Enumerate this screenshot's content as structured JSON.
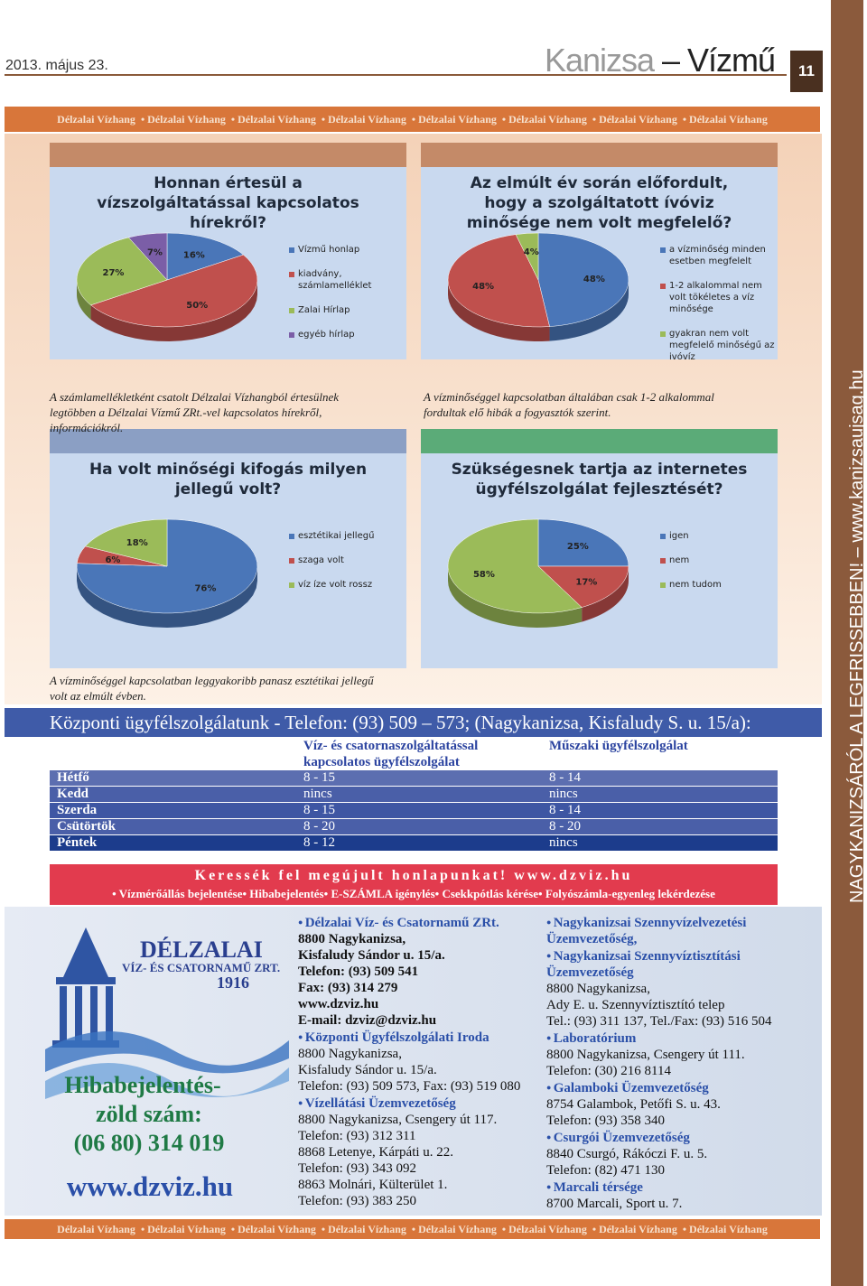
{
  "header": {
    "date": "2013. május 23.",
    "brand": "Kanizsa",
    "brand_rest": "– Vízmű",
    "page": "11"
  },
  "banner": "Délzalai Vízhang",
  "side_text": "NAGYKANIZSÁRÓL A LEGFRISSEBBEN! – www.kanizsaujsag.hu",
  "chart_data": [
    {
      "type": "pie",
      "title": "Honnan értesül a vízszolgáltatással kapcsolatos hírekről?",
      "categories": [
        "Vízmű honlap",
        "kiadvány, számlamelléklet",
        "Zalai Hírlap",
        "egyéb hírlap"
      ],
      "values": [
        16,
        50,
        27,
        7
      ],
      "value_labels": [
        "16%",
        "50%",
        "27%",
        "7%"
      ],
      "colors": [
        "#4a76b8",
        "#c0504d",
        "#9bbb59",
        "#7b5ea7"
      ],
      "caption": "A számlamellékletként csatolt Délzalai Vízhangból értesülnek legtöbben a Délzalai Vízmű ZRt.-vel kapcsolatos hírekről, információkról."
    },
    {
      "type": "pie",
      "title": "Az elmúlt év során előfordult, hogy a szolgáltatott ívóviz minősége nem volt megfelelő?",
      "categories": [
        "a vízminőség minden esetben megfelelt",
        "1-2 alkalommal nem volt tökéletes a víz minősége",
        "gyakran nem volt megfelelő minőségű az ivóvíz"
      ],
      "values": [
        48,
        48,
        4
      ],
      "value_labels": [
        "48%",
        "48%",
        "4%"
      ],
      "colors": [
        "#4a76b8",
        "#c0504d",
        "#9bbb59"
      ],
      "caption": "A vízminőséggel kapcsolatban általában csak 1-2 alkalommal fordultak elő hibák a fogyasztók szerint."
    },
    {
      "type": "pie",
      "title": "Ha volt minőségi kifogás milyen jellegű volt?",
      "categories": [
        "esztétikai jellegű",
        "szaga volt",
        "víz íze volt rossz"
      ],
      "values": [
        76,
        6,
        18
      ],
      "value_labels": [
        "76%",
        "6%",
        "18%"
      ],
      "colors": [
        "#4a76b8",
        "#c0504d",
        "#9bbb59"
      ],
      "caption": "A vízminőséggel kapcsolatban leggyakoribb panasz esztétikai jellegű volt az elmúlt évben."
    },
    {
      "type": "pie",
      "title": "Szükségesnek tartja az internetes ügyfélszolgálat fejlesztését?",
      "categories": [
        "igen",
        "nem",
        "nem tudom"
      ],
      "values": [
        25,
        17,
        58
      ],
      "value_labels": [
        "25%",
        "17%",
        "58%"
      ],
      "colors": [
        "#4a76b8",
        "#c0504d",
        "#9bbb59"
      ]
    }
  ],
  "table": {
    "title": "Központi ügyfélszolgálatunk - Telefon: (93) 509 – 573; (Nagykanizsa, Kisfaludy S. u. 15/a):",
    "columns": [
      "Víz- és csatornaszolgáltatással kapcsolatos ügyfélszolgálat",
      "Műszaki ügyfélszolgálat"
    ],
    "rows": [
      [
        "Hétfő",
        "8 - 15",
        "8 - 14"
      ],
      [
        "Kedd",
        "nincs",
        "nincs"
      ],
      [
        "Szerda",
        "8 - 15",
        "8 - 14"
      ],
      [
        "Csütörtök",
        "8 - 20",
        "8 - 20"
      ],
      [
        "Péntek",
        "8 - 12",
        "nincs"
      ]
    ]
  },
  "promo": {
    "headline": "Keressék fel megújult honlapunkat! www.dzviz.hu",
    "services": [
      "Vízmérőállás bejelentése",
      "Hibabejelentés",
      "E-SZÁMLA igénylés",
      "Csekkpótlás kérése",
      "Folyószámla-egyenleg lekérdezése"
    ]
  },
  "logo": {
    "name": "DÉLZALAI",
    "subtitle": "VÍZ- ÉS CSATORNAMŰ ZRT.",
    "year": "1916",
    "hotline": [
      "Hibabejelentés-",
      "zöld szám:",
      "(06 80) 314 019"
    ],
    "web": "www.dzviz.hu"
  },
  "contacts": [
    [
      {
        "name": "Délzalai Víz- és Csatornamű ZRt.",
        "lines": [
          "8800 Nagykanizsa,",
          "Kisfaludy Sándor u. 15/a.",
          "Telefon: (93) 509 541",
          "Fax: (93) 314 279",
          "www.dzviz.hu",
          "E-mail: dzviz@dzviz.hu"
        ]
      },
      {
        "name": "Központi Ügyfélszolgálati Iroda",
        "lines": [
          "8800 Nagykanizsa,",
          "Kisfaludy Sándor u. 15/a.",
          "Telefon: (93) 509 573, Fax: (93) 519 080"
        ]
      },
      {
        "name": "Vízellátási Üzemvezetőség",
        "lines": [
          "8800 Nagykanizsa, Csengery út 117.",
          "Telefon: (93) 312 311",
          "8868 Letenye, Kárpáti u. 22.",
          "Telefon: (93) 343 092",
          "8863 Molnári, Külterület 1.",
          "Telefon: (93) 383 250"
        ]
      }
    ],
    [
      {
        "name": "Nagykanizsai Szennyvízelvezetési Üzemvezetőség,",
        "lines": []
      },
      {
        "name": "Nagykanizsai Szennyvíztisztítási Üzemvezetőség",
        "lines": [
          "8800 Nagykanizsa,",
          "Ady E. u. Szennyvíztisztító telep",
          "Tel.: (93) 311 137, Tel./Fax: (93) 516 504"
        ]
      },
      {
        "name": "Laboratórium",
        "lines": [
          "8800 Nagykanizsa, Csengery út 111.",
          "Telefon: (30) 216 8114"
        ]
      },
      {
        "name": "Galamboki Üzemvezetőség",
        "lines": [
          "8754 Galambok, Petőfi S. u. 43.",
          "Telefon: (93) 358 340"
        ]
      },
      {
        "name": "Csurgói Üzemvezetőség",
        "lines": [
          "8840 Csurgó, Rákóczi F. u. 5.",
          "Telefon: (82) 471 130"
        ]
      },
      {
        "name": "Marcali térsége",
        "lines": [
          "8700 Marcali, Sport u. 7."
        ]
      }
    ]
  ]
}
